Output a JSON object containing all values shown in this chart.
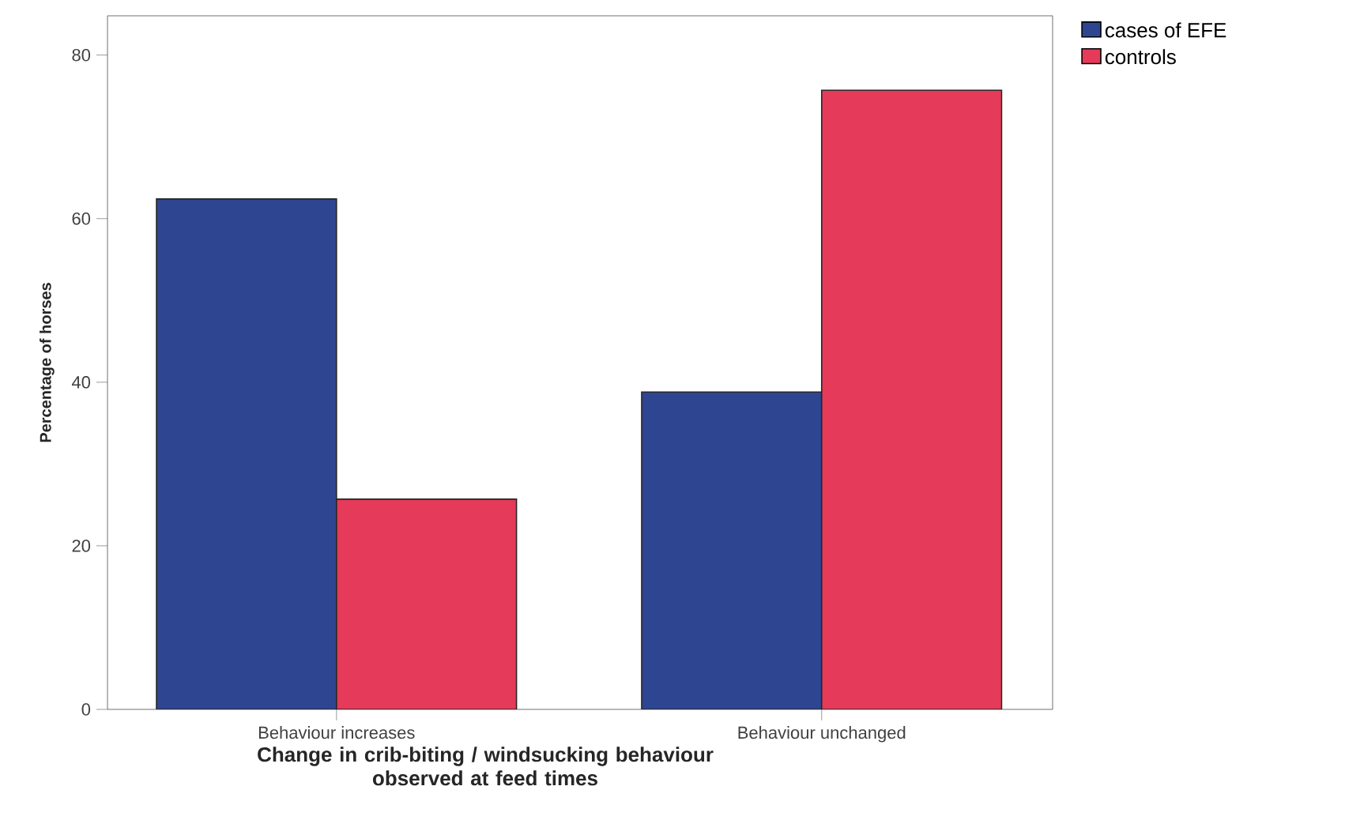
{
  "chart_data": {
    "type": "bar",
    "xlabel": "Change in crib-biting / windsucking behaviour\nobserved at feed times",
    "ylabel": "Percentage of horses",
    "categories": [
      "Behaviour increases",
      "Behaviour unchanged"
    ],
    "series": [
      {
        "name": "cases of EFE",
        "color": "#2e4591",
        "values": [
          62.4,
          38.8
        ]
      },
      {
        "name": "controls",
        "color": "#e63a5a",
        "values": [
          25.7,
          75.7
        ]
      }
    ],
    "ylim": [
      0,
      84.8
    ],
    "yticks": [
      0,
      20,
      40,
      60,
      80
    ],
    "grid": false,
    "legend": "top right"
  }
}
